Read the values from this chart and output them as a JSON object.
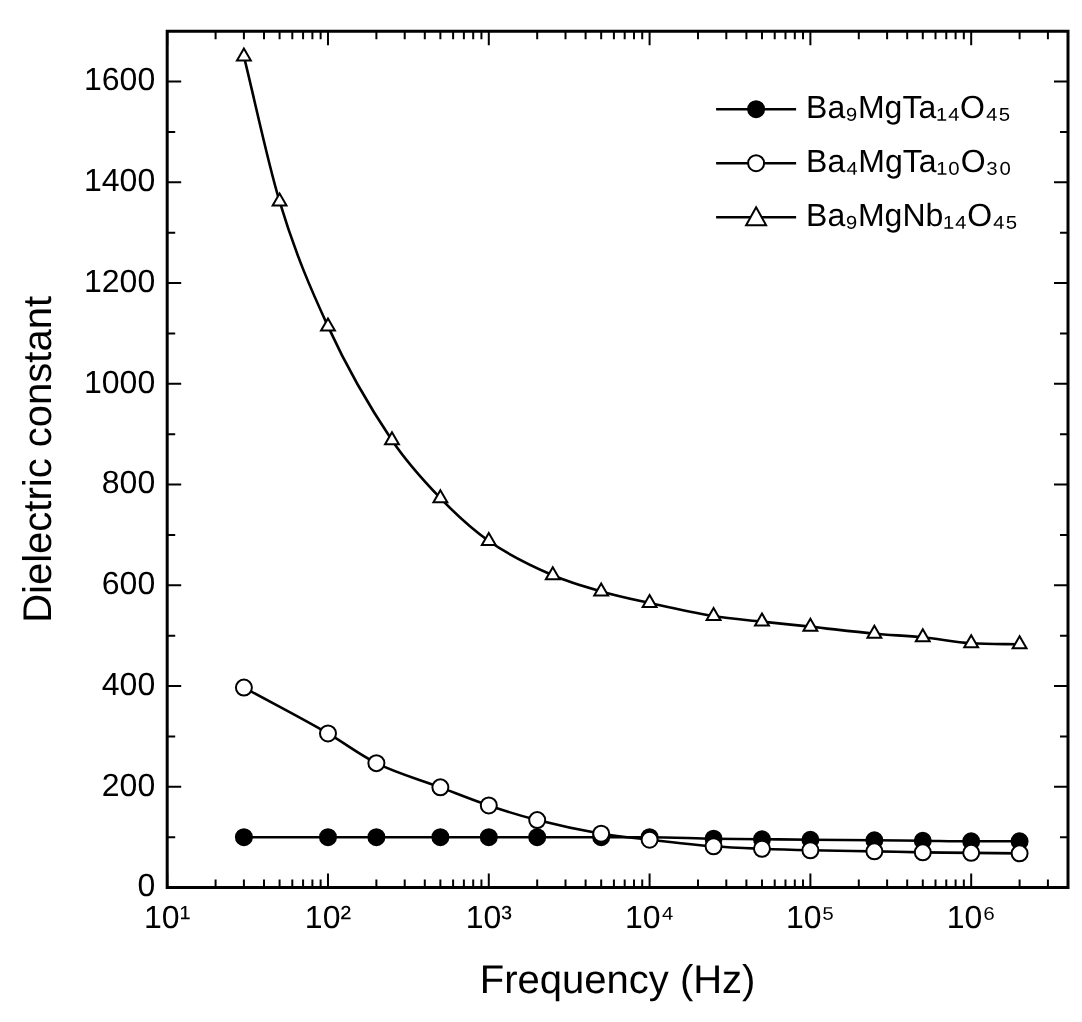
{
  "chart_data": {
    "type": "line",
    "xlabel": "Frequency (Hz)",
    "ylabel": "Dielectric constant",
    "log": "x",
    "marker": "circle",
    "legend": "top right",
    "grid": false,
    "line_style": "solid",
    "xlim": [
      10,
      4000000
    ],
    "ylim": [
      0,
      1700
    ],
    "xticks": [
      {
        "value": 10,
        "label": "10¹"
      },
      {
        "value": 20,
        "label": null
      },
      {
        "value": 30,
        "label": null
      },
      {
        "value": 40,
        "label": null
      },
      {
        "value": 50,
        "label": null
      },
      {
        "value": 60,
        "label": null
      },
      {
        "value": 70,
        "label": null
      },
      {
        "value": 80,
        "label": null
      },
      {
        "value": 90,
        "label": null
      },
      {
        "value": 100,
        "label": "10²"
      },
      {
        "value": 200,
        "label": null
      },
      {
        "value": 300,
        "label": null
      },
      {
        "value": 400,
        "label": null
      },
      {
        "value": 500,
        "label": null
      },
      {
        "value": 600,
        "label": null
      },
      {
        "value": 700,
        "label": null
      },
      {
        "value": 800,
        "label": null
      },
      {
        "value": 900,
        "label": null
      },
      {
        "value": 1000,
        "label": "10³"
      },
      {
        "value": 2000,
        "label": null
      },
      {
        "value": 3000,
        "label": null
      },
      {
        "value": 4000,
        "label": null
      },
      {
        "value": 5000,
        "label": null
      },
      {
        "value": 6000,
        "label": null
      },
      {
        "value": 7000,
        "label": null
      },
      {
        "value": 8000,
        "label": null
      },
      {
        "value": 9000,
        "label": null
      },
      {
        "value": 10000,
        "label": "10⁴"
      },
      {
        "value": 20000,
        "label": null
      },
      {
        "value": 30000,
        "label": null
      },
      {
        "value": 40000,
        "label": null
      },
      {
        "value": 50000,
        "label": null
      },
      {
        "value": 60000,
        "label": null
      },
      {
        "value": 70000,
        "label": null
      },
      {
        "value": 80000,
        "label": null
      },
      {
        "value": 90000,
        "label": null
      },
      {
        "value": 100000,
        "label": "10⁵"
      },
      {
        "value": 200000,
        "label": null
      },
      {
        "value": 300000,
        "label": null
      },
      {
        "value": 400000,
        "label": null
      },
      {
        "value": 500000,
        "label": null
      },
      {
        "value": 600000,
        "label": null
      },
      {
        "value": 700000,
        "label": null
      },
      {
        "value": 800000,
        "label": null
      },
      {
        "value": 900000,
        "label": null
      },
      {
        "value": 1000000,
        "label": "10⁶"
      },
      {
        "value": 2000000,
        "label": null
      },
      {
        "value": 3000000,
        "label": null
      },
      {
        "value": 4000000,
        "label": null
      }
    ],
    "yticks": [
      0,
      {
        "value": 100,
        "label": null
      },
      200,
      {
        "value": 300,
        "label": null
      },
      400,
      {
        "value": 500,
        "label": null
      },
      600,
      {
        "value": 700,
        "label": null
      },
      800,
      {
        "value": 900,
        "label": null
      },
      1000,
      {
        "value": 1100,
        "label": null
      },
      1200,
      {
        "value": 1300,
        "label": null
      },
      1400,
      {
        "value": 1500,
        "label": null
      },
      1600
    ],
    "series": [
      {
        "name": "Ba₉MgTa₁₄O₄₅",
        "color": "#000000",
        "x": [
          30,
          100,
          200,
          500,
          1000,
          2000,
          5000,
          10000,
          25000,
          50000,
          100000,
          250000,
          500000,
          1000000,
          2000000
        ],
        "values": [
          100,
          100,
          100,
          100,
          100,
          100,
          100,
          100,
          97,
          96,
          95,
          94,
          93,
          92,
          92
        ]
      },
      {
        "name": "Ba₄MgTa₁₀O₃₀",
        "color": "#000000",
        "marker": "circle",
        "x": [
          30,
          100,
          200,
          500,
          1000,
          2000,
          5000,
          10000,
          25000,
          50000,
          100000,
          250000,
          500000,
          1000000,
          2000000
        ],
        "values": [
          397,
          306,
          247,
          199,
          163,
          134,
          107,
          95,
          82,
          77,
          74,
          72,
          70,
          69,
          68
        ]
      },
      {
        "name": "Ba₉MgNb₁₄O₄₅",
        "color": "#000000",
        "marker": "triangle",
        "x": [
          30,
          50,
          100,
          250,
          500,
          1000,
          2500,
          5000,
          10000,
          25000,
          50000,
          100000,
          250000,
          500000,
          1000000,
          2000000
        ],
        "values": [
          1650,
          1362,
          1114,
          888,
          773,
          688,
          620,
          588,
          565,
          539,
          528,
          518,
          504,
          497,
          485,
          483
        ]
      }
    ]
  }
}
